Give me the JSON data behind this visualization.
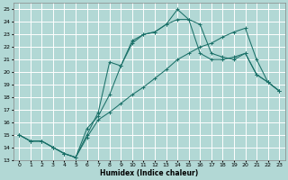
{
  "xlabel": "Humidex (Indice chaleur)",
  "bg_color": "#b2d8d5",
  "grid_color": "#ffffff",
  "line_color": "#1a7068",
  "xlim": [
    -0.5,
    23.5
  ],
  "ylim": [
    13.0,
    25.5
  ],
  "xticks": [
    0,
    1,
    2,
    3,
    4,
    5,
    6,
    7,
    8,
    9,
    10,
    11,
    12,
    13,
    14,
    15,
    16,
    17,
    18,
    19,
    20,
    21,
    22,
    23
  ],
  "yticks": [
    13,
    14,
    15,
    16,
    17,
    18,
    19,
    20,
    21,
    22,
    23,
    24,
    25
  ],
  "line1_x": [
    0,
    1,
    2,
    3,
    4,
    5,
    6,
    7,
    8,
    9,
    10,
    11,
    12,
    13,
    14,
    15,
    16,
    17,
    18,
    19,
    20,
    21,
    22,
    23
  ],
  "line1_y": [
    15.0,
    14.5,
    14.5,
    14.0,
    13.5,
    13.2,
    14.8,
    16.2,
    16.8,
    17.5,
    18.2,
    18.8,
    19.5,
    20.2,
    21.0,
    21.5,
    22.0,
    22.3,
    22.8,
    23.2,
    23.5,
    21.0,
    19.2,
    18.5
  ],
  "line2_x": [
    0,
    1,
    2,
    3,
    4,
    5,
    6,
    7,
    8,
    9,
    10,
    11,
    12,
    13,
    14,
    15,
    16,
    17,
    18,
    19,
    20,
    21,
    22,
    23
  ],
  "line2_y": [
    15.0,
    14.5,
    14.5,
    14.0,
    13.5,
    13.2,
    15.5,
    16.5,
    18.2,
    20.5,
    22.3,
    23.0,
    23.2,
    23.8,
    24.2,
    24.2,
    21.5,
    21.0,
    21.0,
    21.2,
    21.5,
    19.8,
    19.2,
    18.5
  ],
  "line3_x": [
    0,
    1,
    2,
    3,
    4,
    5,
    6,
    7,
    8,
    9,
    10,
    11,
    12,
    13,
    14,
    15,
    16,
    17,
    18,
    19,
    20,
    21,
    22,
    23
  ],
  "line3_y": [
    15.0,
    14.5,
    14.5,
    14.0,
    13.5,
    13.2,
    15.0,
    16.8,
    20.8,
    20.5,
    22.5,
    23.0,
    23.2,
    23.8,
    25.0,
    24.2,
    23.8,
    21.5,
    21.2,
    21.0,
    21.5,
    19.8,
    19.2,
    18.5
  ]
}
